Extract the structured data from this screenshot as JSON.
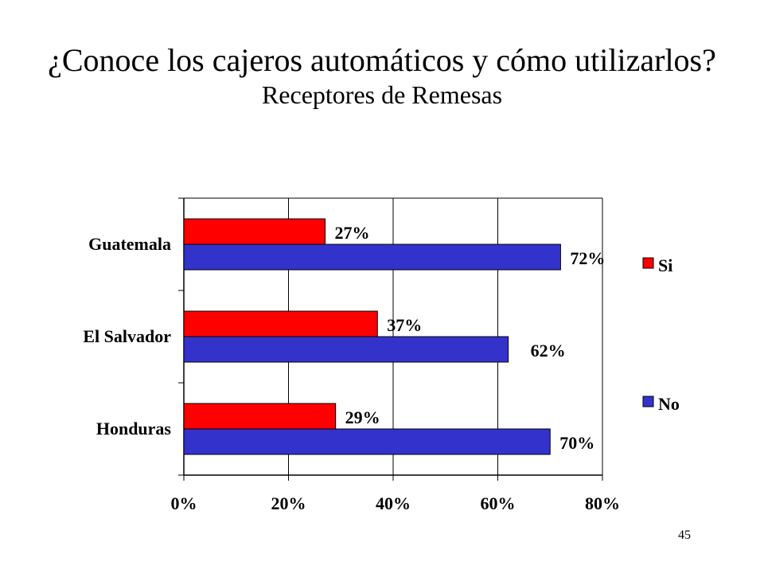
{
  "title": "¿Conoce los cajeros automáticos y cómo utilizarlos?",
  "subtitle": "Receptores de Remesas",
  "page_number": "45",
  "chart_data": {
    "type": "bar",
    "orientation": "horizontal",
    "categories": [
      "Guatemala",
      "El Salvador",
      "Honduras"
    ],
    "series": [
      {
        "name": "Si",
        "color": "#ff0000",
        "values": [
          27,
          37,
          29
        ],
        "labels": [
          "27%",
          "37%",
          "29%"
        ]
      },
      {
        "name": "No",
        "color": "#3333cc",
        "values": [
          72,
          62,
          70
        ],
        "labels": [
          "72%",
          "62%",
          "70%"
        ]
      }
    ],
    "xlim": [
      0,
      80
    ],
    "x_ticks": [
      0,
      20,
      40,
      60,
      80
    ],
    "x_tick_labels": [
      "0%",
      "20%",
      "40%",
      "60%",
      "80%"
    ],
    "grid": "vertical",
    "legend": "right"
  }
}
